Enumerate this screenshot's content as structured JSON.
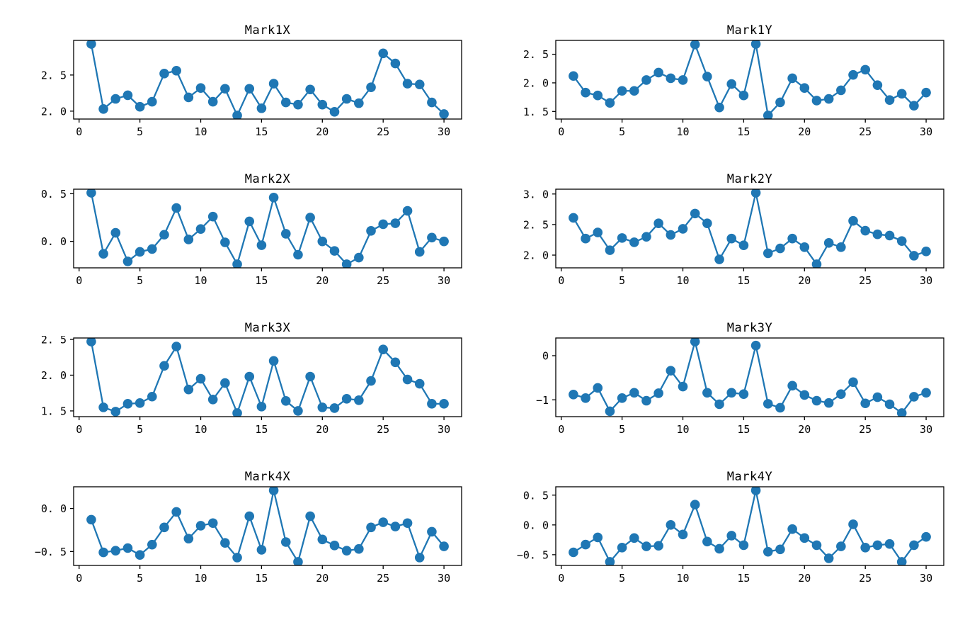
{
  "figure": {
    "background": "#ffffff",
    "series_color": "#1f77b4",
    "marker": "o",
    "layout": "4 rows x 2 columns",
    "grid": false,
    "legend": "none"
  },
  "chart_data": [
    {
      "type": "line",
      "title": "Mark1X",
      "xlabel": "",
      "ylabel": "",
      "x": [
        1,
        2,
        3,
        4,
        5,
        6,
        7,
        8,
        9,
        10,
        11,
        12,
        13,
        14,
        15,
        16,
        17,
        18,
        19,
        20,
        21,
        22,
        23,
        24,
        25,
        26,
        27,
        28,
        29,
        30
      ],
      "values": [
        2.93,
        2.03,
        2.17,
        2.22,
        2.06,
        2.13,
        2.52,
        2.56,
        2.19,
        2.32,
        2.13,
        2.31,
        1.94,
        2.31,
        2.04,
        2.38,
        2.12,
        2.09,
        2.3,
        2.09,
        1.99,
        2.17,
        2.11,
        2.33,
        2.8,
        2.66,
        2.38,
        2.37,
        2.12,
        1.96
      ],
      "xlim": [
        -0.45,
        31.45
      ],
      "ylim": [
        1.8905,
        2.9795
      ],
      "xtick_values": [
        0,
        5,
        10,
        15,
        20,
        25,
        30
      ],
      "xtick_labels": [
        "0",
        "5",
        "10",
        "15",
        "20",
        "25",
        "30"
      ],
      "ytick_values": [
        2.0,
        2.5
      ],
      "ytick_labels": [
        "2. 0",
        "2. 5"
      ]
    },
    {
      "type": "line",
      "title": "Mark1Y",
      "xlabel": "",
      "ylabel": "",
      "x": [
        1,
        2,
        3,
        4,
        5,
        6,
        7,
        8,
        9,
        10,
        11,
        12,
        13,
        14,
        15,
        16,
        17,
        18,
        19,
        20,
        21,
        22,
        23,
        24,
        25,
        26,
        27,
        28,
        29,
        30
      ],
      "values": [
        2.12,
        1.83,
        1.78,
        1.65,
        1.86,
        1.86,
        2.05,
        2.18,
        2.08,
        2.05,
        2.67,
        2.11,
        1.57,
        1.98,
        1.78,
        2.68,
        1.43,
        1.66,
        2.08,
        1.91,
        1.69,
        1.72,
        1.87,
        2.14,
        2.23,
        1.96,
        1.7,
        1.81,
        1.6,
        1.83
      ],
      "xlim": [
        -0.45,
        31.45
      ],
      "ylim": [
        1.3675,
        2.7425
      ],
      "xtick_values": [
        0,
        5,
        10,
        15,
        20,
        25,
        30
      ],
      "xtick_labels": [
        "0",
        "5",
        "10",
        "15",
        "20",
        "25",
        "30"
      ],
      "ytick_values": [
        1.5,
        2.0,
        2.5
      ],
      "ytick_labels": [
        "1. 5",
        "2. 0",
        "2. 5"
      ]
    },
    {
      "type": "line",
      "title": "Mark2X",
      "xlabel": "",
      "ylabel": "",
      "x": [
        1,
        2,
        3,
        4,
        5,
        6,
        7,
        8,
        9,
        10,
        11,
        12,
        13,
        14,
        15,
        16,
        17,
        18,
        19,
        20,
        21,
        22,
        23,
        24,
        25,
        26,
        27,
        28,
        29,
        30
      ],
      "values": [
        0.51,
        -0.13,
        0.09,
        -0.21,
        -0.11,
        -0.08,
        0.07,
        0.35,
        0.02,
        0.13,
        0.26,
        -0.01,
        -0.24,
        0.21,
        -0.04,
        0.46,
        0.08,
        -0.14,
        0.25,
        0.0,
        -0.1,
        -0.24,
        -0.17,
        0.11,
        0.18,
        0.19,
        0.32,
        -0.11,
        0.04,
        0.0
      ],
      "xlim": [
        -0.45,
        31.45
      ],
      "ylim": [
        -0.2775,
        0.5475
      ],
      "xtick_values": [
        0,
        5,
        10,
        15,
        20,
        25,
        30
      ],
      "xtick_labels": [
        "0",
        "5",
        "10",
        "15",
        "20",
        "25",
        "30"
      ],
      "ytick_values": [
        0.0,
        0.5
      ],
      "ytick_labels": [
        "0. 0",
        "0. 5"
      ]
    },
    {
      "type": "line",
      "title": "Mark2Y",
      "xlabel": "",
      "ylabel": "",
      "x": [
        1,
        2,
        3,
        4,
        5,
        6,
        7,
        8,
        9,
        10,
        11,
        12,
        13,
        14,
        15,
        16,
        17,
        18,
        19,
        20,
        21,
        22,
        23,
        24,
        25,
        26,
        27,
        28,
        29,
        30
      ],
      "values": [
        2.61,
        2.27,
        2.37,
        2.08,
        2.28,
        2.21,
        2.3,
        2.52,
        2.33,
        2.43,
        2.68,
        2.52,
        1.93,
        2.27,
        2.16,
        3.02,
        2.03,
        2.11,
        2.27,
        2.13,
        1.85,
        2.2,
        2.13,
        2.56,
        2.4,
        2.34,
        2.32,
        2.23,
        1.99,
        2.06
      ],
      "xlim": [
        -0.45,
        31.45
      ],
      "ylim": [
        1.7915,
        3.0785
      ],
      "xtick_values": [
        0,
        5,
        10,
        15,
        20,
        25,
        30
      ],
      "xtick_labels": [
        "0",
        "5",
        "10",
        "15",
        "20",
        "25",
        "30"
      ],
      "ytick_values": [
        2.0,
        2.5,
        3.0
      ],
      "ytick_labels": [
        "2. 0",
        "2. 5",
        "3. 0"
      ]
    },
    {
      "type": "line",
      "title": "Mark3X",
      "xlabel": "",
      "ylabel": "",
      "x": [
        1,
        2,
        3,
        4,
        5,
        6,
        7,
        8,
        9,
        10,
        11,
        12,
        13,
        14,
        15,
        16,
        17,
        18,
        19,
        20,
        21,
        22,
        23,
        24,
        25,
        26,
        27,
        28,
        29,
        30
      ],
      "values": [
        2.47,
        1.55,
        1.49,
        1.6,
        1.61,
        1.7,
        2.13,
        2.4,
        1.8,
        1.95,
        1.66,
        1.89,
        1.47,
        1.98,
        1.56,
        2.2,
        1.64,
        1.5,
        1.98,
        1.55,
        1.54,
        1.67,
        1.65,
        1.92,
        2.36,
        2.18,
        1.94,
        1.88,
        1.6,
        1.6
      ],
      "xlim": [
        -0.45,
        31.45
      ],
      "ylim": [
        1.42,
        2.52
      ],
      "xtick_values": [
        0,
        5,
        10,
        15,
        20,
        25,
        30
      ],
      "xtick_labels": [
        "0",
        "5",
        "10",
        "15",
        "20",
        "25",
        "30"
      ],
      "ytick_values": [
        1.5,
        2.0,
        2.5
      ],
      "ytick_labels": [
        "1. 5",
        "2. 0",
        "2. 5"
      ]
    },
    {
      "type": "line",
      "title": "Mark3Y",
      "xlabel": "",
      "ylabel": "",
      "x": [
        1,
        2,
        3,
        4,
        5,
        6,
        7,
        8,
        9,
        10,
        11,
        12,
        13,
        14,
        15,
        16,
        17,
        18,
        19,
        20,
        21,
        22,
        23,
        24,
        25,
        26,
        27,
        28,
        29,
        30
      ],
      "values": [
        -0.88,
        -0.96,
        -0.73,
        -1.26,
        -0.96,
        -0.84,
        -1.02,
        -0.85,
        -0.34,
        -0.7,
        0.32,
        -0.84,
        -1.1,
        -0.84,
        -0.87,
        0.23,
        -1.09,
        -1.18,
        -0.68,
        -0.89,
        -1.02,
        -1.07,
        -0.87,
        -0.6,
        -1.08,
        -0.94,
        -1.1,
        -1.3,
        -0.93,
        -0.84
      ],
      "xlim": [
        -0.45,
        31.45
      ],
      "ylim": [
        -1.381,
        0.401
      ],
      "xtick_values": [
        0,
        5,
        10,
        15,
        20,
        25,
        30
      ],
      "xtick_labels": [
        "0",
        "5",
        "10",
        "15",
        "20",
        "25",
        "30"
      ],
      "ytick_values": [
        -1,
        0
      ],
      "ytick_labels": [
        "−1",
        "0"
      ]
    },
    {
      "type": "line",
      "title": "Mark4X",
      "xlabel": "",
      "ylabel": "",
      "x": [
        1,
        2,
        3,
        4,
        5,
        6,
        7,
        8,
        9,
        10,
        11,
        12,
        13,
        14,
        15,
        16,
        17,
        18,
        19,
        20,
        21,
        22,
        23,
        24,
        25,
        26,
        27,
        28,
        29,
        30
      ],
      "values": [
        -0.13,
        -0.51,
        -0.49,
        -0.46,
        -0.54,
        -0.42,
        -0.22,
        -0.04,
        -0.35,
        -0.2,
        -0.17,
        -0.4,
        -0.57,
        -0.09,
        -0.48,
        0.21,
        -0.39,
        -0.62,
        -0.09,
        -0.36,
        -0.43,
        -0.49,
        -0.47,
        -0.22,
        -0.16,
        -0.21,
        -0.17,
        -0.57,
        -0.27,
        -0.44
      ],
      "xlim": [
        -0.45,
        31.45
      ],
      "ylim": [
        -0.6615,
        0.2515
      ],
      "xtick_values": [
        0,
        5,
        10,
        15,
        20,
        25,
        30
      ],
      "xtick_labels": [
        "0",
        "5",
        "10",
        "15",
        "20",
        "25",
        "30"
      ],
      "ytick_values": [
        -0.5,
        0.0
      ],
      "ytick_labels": [
        "−0. 5",
        "0. 0"
      ]
    },
    {
      "type": "line",
      "title": "Mark4Y",
      "xlabel": "",
      "ylabel": "",
      "x": [
        1,
        2,
        3,
        4,
        5,
        6,
        7,
        8,
        9,
        10,
        11,
        12,
        13,
        14,
        15,
        16,
        17,
        18,
        19,
        20,
        21,
        22,
        23,
        24,
        25,
        26,
        27,
        28,
        29,
        30
      ],
      "values": [
        -0.46,
        -0.33,
        -0.21,
        -0.62,
        -0.38,
        -0.22,
        -0.36,
        -0.35,
        0.0,
        -0.16,
        0.34,
        -0.28,
        -0.4,
        -0.18,
        -0.34,
        0.58,
        -0.45,
        -0.41,
        -0.07,
        -0.22,
        -0.34,
        -0.56,
        -0.36,
        0.01,
        -0.38,
        -0.34,
        -0.32,
        -0.62,
        -0.34,
        -0.2
      ],
      "xlim": [
        -0.45,
        31.45
      ],
      "ylim": [
        -0.68,
        0.64
      ],
      "xtick_values": [
        0,
        5,
        10,
        15,
        20,
        25,
        30
      ],
      "xtick_labels": [
        "0",
        "5",
        "10",
        "15",
        "20",
        "25",
        "30"
      ],
      "ytick_values": [
        -0.5,
        0.0,
        0.5
      ],
      "ytick_labels": [
        "−0. 5",
        "0. 0",
        "0. 5"
      ]
    }
  ]
}
